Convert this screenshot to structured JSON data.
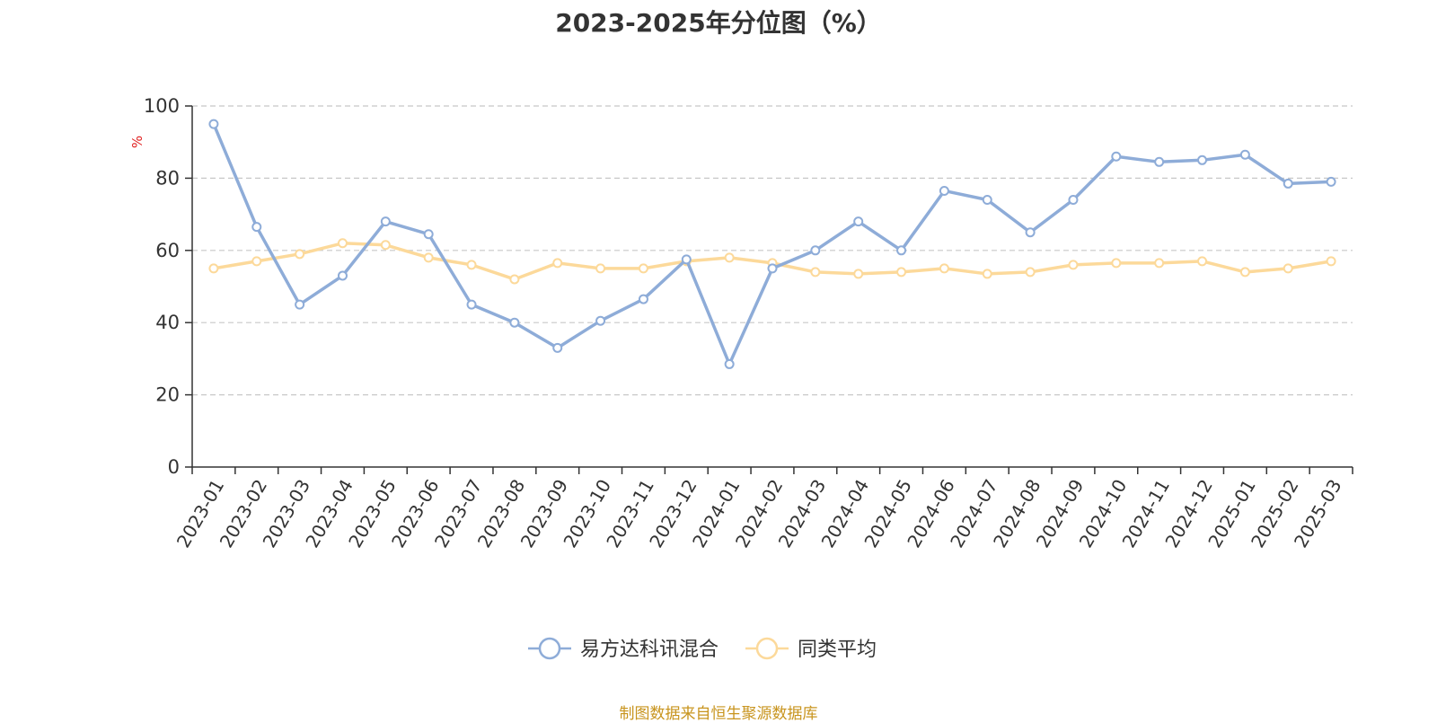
{
  "chart_data": {
    "type": "line",
    "title": "2023-2025年分位图（%）",
    "ylabel": "%",
    "xlabel": "",
    "ylim": [
      0,
      100
    ],
    "yticks": [
      0,
      20,
      40,
      60,
      80,
      100
    ],
    "grid": true,
    "legend_position": "bottom-center",
    "categories": [
      "2023-01",
      "2023-02",
      "2023-03",
      "2023-04",
      "2023-05",
      "2023-06",
      "2023-07",
      "2023-08",
      "2023-09",
      "2023-10",
      "2023-11",
      "2023-12",
      "2024-01",
      "2024-02",
      "2024-03",
      "2024-04",
      "2024-05",
      "2024-06",
      "2024-07",
      "2024-08",
      "2024-09",
      "2024-10",
      "2024-11",
      "2024-12",
      "2025-01",
      "2025-02",
      "2025-03"
    ],
    "series": [
      {
        "name": "易方达科讯混合",
        "color": "#8eacd8",
        "values": [
          95,
          66.5,
          45,
          53,
          68,
          64.5,
          45,
          40,
          33,
          40.5,
          46.5,
          57.5,
          28.5,
          55,
          60,
          68,
          60,
          76.5,
          74,
          65,
          74,
          86,
          84.5,
          85,
          86.5,
          78.5,
          79
        ]
      },
      {
        "name": "同类平均",
        "color": "#fcd99a",
        "values": [
          55,
          57,
          59,
          62,
          61.5,
          58,
          56,
          52,
          56.5,
          55,
          55,
          57,
          58,
          56.5,
          54,
          53.5,
          54,
          55,
          53.5,
          54,
          56,
          56.5,
          56.5,
          57,
          54,
          55,
          57
        ]
      }
    ]
  },
  "source_note": "制图数据来自恒生聚源数据库"
}
